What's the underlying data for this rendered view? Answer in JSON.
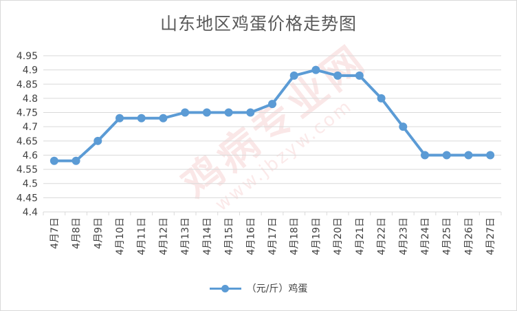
{
  "chart_data": {
    "type": "line",
    "title": "山东地区鸡蛋价格走势图",
    "xlabel": "",
    "ylabel": "",
    "categories": [
      "4月7日",
      "4月8日",
      "4月9日",
      "4月10日",
      "4月11日",
      "4月12日",
      "4月13日",
      "4月14日",
      "4月15日",
      "4月16日",
      "4月17日",
      "4月18日",
      "4月19日",
      "4月20日",
      "4月21日",
      "4月22日",
      "4月23日",
      "4月24日",
      "4月25日",
      "4月26日",
      "4月27日"
    ],
    "series": [
      {
        "name": "（元/斤）鸡蛋",
        "values": [
          4.58,
          4.58,
          4.65,
          4.73,
          4.73,
          4.73,
          4.75,
          4.75,
          4.75,
          4.75,
          4.78,
          4.88,
          4.9,
          4.88,
          4.88,
          4.8,
          4.7,
          4.6,
          4.6,
          4.6,
          4.6
        ]
      }
    ],
    "ylim": [
      4.4,
      4.95
    ],
    "yticks": [
      "4.4",
      "4.45",
      "4.5",
      "4.55",
      "4.6",
      "4.65",
      "4.7",
      "4.75",
      "4.8",
      "4.85",
      "4.9",
      "4.95"
    ],
    "grid": true,
    "legend_position": "bottom"
  },
  "colors": {
    "series_line": "#5b9bd5",
    "grid": "#d9d9d9",
    "axis_text": "#404040",
    "title": "#595959"
  },
  "watermark": {
    "brand": "鸡病专业网",
    "url": "www.jbzyw.com"
  }
}
